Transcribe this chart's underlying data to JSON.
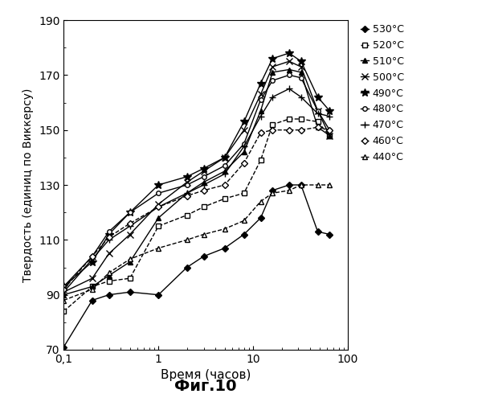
{
  "title": "Фиг.10",
  "xlabel": "Время (часов)",
  "ylabel": "Твердость (единиц по Виккерсу)",
  "ylim": [
    70,
    190
  ],
  "xlim": [
    0.1,
    100
  ],
  "yticks": [
    70,
    90,
    110,
    130,
    150,
    170,
    190
  ],
  "xticks": [
    0.1,
    1,
    10,
    100
  ],
  "xtick_labels": [
    "0,1",
    "1",
    "10",
    "100"
  ],
  "series_order": [
    "530",
    "520",
    "510",
    "500",
    "490",
    "480",
    "470",
    "460",
    "440"
  ],
  "series": {
    "530": {
      "label": "530°C",
      "marker": "D",
      "ms": 4,
      "mfc": "black",
      "ls": "-",
      "x": [
        0.1,
        0.2,
        0.3,
        0.5,
        1.0,
        2.0,
        3.0,
        5.0,
        8.0,
        12.0,
        16.0,
        24.0,
        32.0,
        48.0,
        64.0
      ],
      "y": [
        71,
        88,
        90,
        91,
        90,
        100,
        104,
        107,
        112,
        118,
        128,
        130,
        130,
        113,
        112
      ]
    },
    "520": {
      "label": "520°C",
      "marker": "s",
      "ms": 4,
      "mfc": "white",
      "ls": "--",
      "x": [
        0.1,
        0.2,
        0.3,
        0.5,
        1.0,
        2.0,
        3.0,
        5.0,
        8.0,
        12.0,
        16.0,
        24.0,
        32.0,
        48.0,
        64.0
      ],
      "y": [
        84,
        93,
        95,
        96,
        115,
        119,
        122,
        125,
        127,
        139,
        152,
        154,
        154,
        153,
        148
      ]
    },
    "510": {
      "label": "510°C",
      "marker": "^",
      "ms": 4,
      "mfc": "black",
      "ls": "-",
      "x": [
        0.1,
        0.2,
        0.3,
        0.5,
        1.0,
        2.0,
        3.0,
        5.0,
        8.0,
        12.0,
        16.0,
        24.0,
        32.0,
        48.0,
        64.0
      ],
      "y": [
        90,
        93,
        97,
        102,
        118,
        127,
        131,
        135,
        142,
        157,
        171,
        172,
        171,
        151,
        148
      ]
    },
    "500": {
      "label": "500°C",
      "marker": "x",
      "ms": 6,
      "mfc": "black",
      "ls": "-",
      "x": [
        0.1,
        0.2,
        0.3,
        0.5,
        1.0,
        2.0,
        3.0,
        5.0,
        8.0,
        12.0,
        16.0,
        24.0,
        32.0,
        48.0,
        64.0
      ],
      "y": [
        91,
        96,
        105,
        112,
        123,
        131,
        135,
        140,
        150,
        163,
        173,
        175,
        173,
        157,
        148
      ]
    },
    "490": {
      "label": "490°C",
      "marker": "*",
      "ms": 7,
      "mfc": "black",
      "ls": "-",
      "x": [
        0.1,
        0.2,
        0.3,
        0.5,
        1.0,
        2.0,
        3.0,
        5.0,
        8.0,
        12.0,
        16.0,
        24.0,
        32.0,
        48.0,
        64.0
      ],
      "y": [
        93,
        102,
        112,
        120,
        130,
        133,
        136,
        140,
        153,
        167,
        176,
        178,
        175,
        162,
        157
      ]
    },
    "480": {
      "label": "480°C",
      "marker": "o",
      "ms": 4,
      "mfc": "white",
      "ls": "-",
      "x": [
        0.1,
        0.2,
        0.3,
        0.5,
        1.0,
        2.0,
        3.0,
        5.0,
        8.0,
        12.0,
        16.0,
        24.0,
        32.0,
        48.0,
        64.0
      ],
      "y": [
        93,
        104,
        113,
        120,
        127,
        130,
        133,
        137,
        145,
        161,
        168,
        170,
        169,
        157,
        150
      ]
    },
    "470": {
      "label": "470°C",
      "marker": "+",
      "ms": 6,
      "mfc": "black",
      "ls": "-",
      "x": [
        0.1,
        0.2,
        0.3,
        0.5,
        1.0,
        2.0,
        3.0,
        5.0,
        8.0,
        12.0,
        16.0,
        24.0,
        32.0,
        48.0,
        64.0
      ],
      "y": [
        91,
        103,
        110,
        115,
        122,
        127,
        130,
        134,
        144,
        155,
        162,
        165,
        162,
        156,
        155
      ]
    },
    "460": {
      "label": "460°C",
      "marker": "D",
      "ms": 4,
      "mfc": "white",
      "ls": "--",
      "x": [
        0.1,
        0.2,
        0.3,
        0.5,
        1.0,
        2.0,
        3.0,
        5.0,
        8.0,
        12.0,
        16.0,
        24.0,
        32.0,
        48.0,
        64.0
      ],
      "y": [
        92,
        104,
        111,
        116,
        122,
        126,
        128,
        130,
        138,
        149,
        150,
        150,
        150,
        151,
        150
      ]
    },
    "440": {
      "label": "440°C",
      "marker": "^",
      "ms": 4,
      "mfc": "white",
      "ls": "--",
      "x": [
        0.1,
        0.2,
        0.3,
        0.5,
        1.0,
        2.0,
        3.0,
        5.0,
        8.0,
        12.0,
        16.0,
        24.0,
        32.0,
        48.0,
        64.0
      ],
      "y": [
        88,
        92,
        98,
        103,
        107,
        110,
        112,
        114,
        117,
        124,
        127,
        128,
        130,
        130,
        130
      ]
    }
  }
}
